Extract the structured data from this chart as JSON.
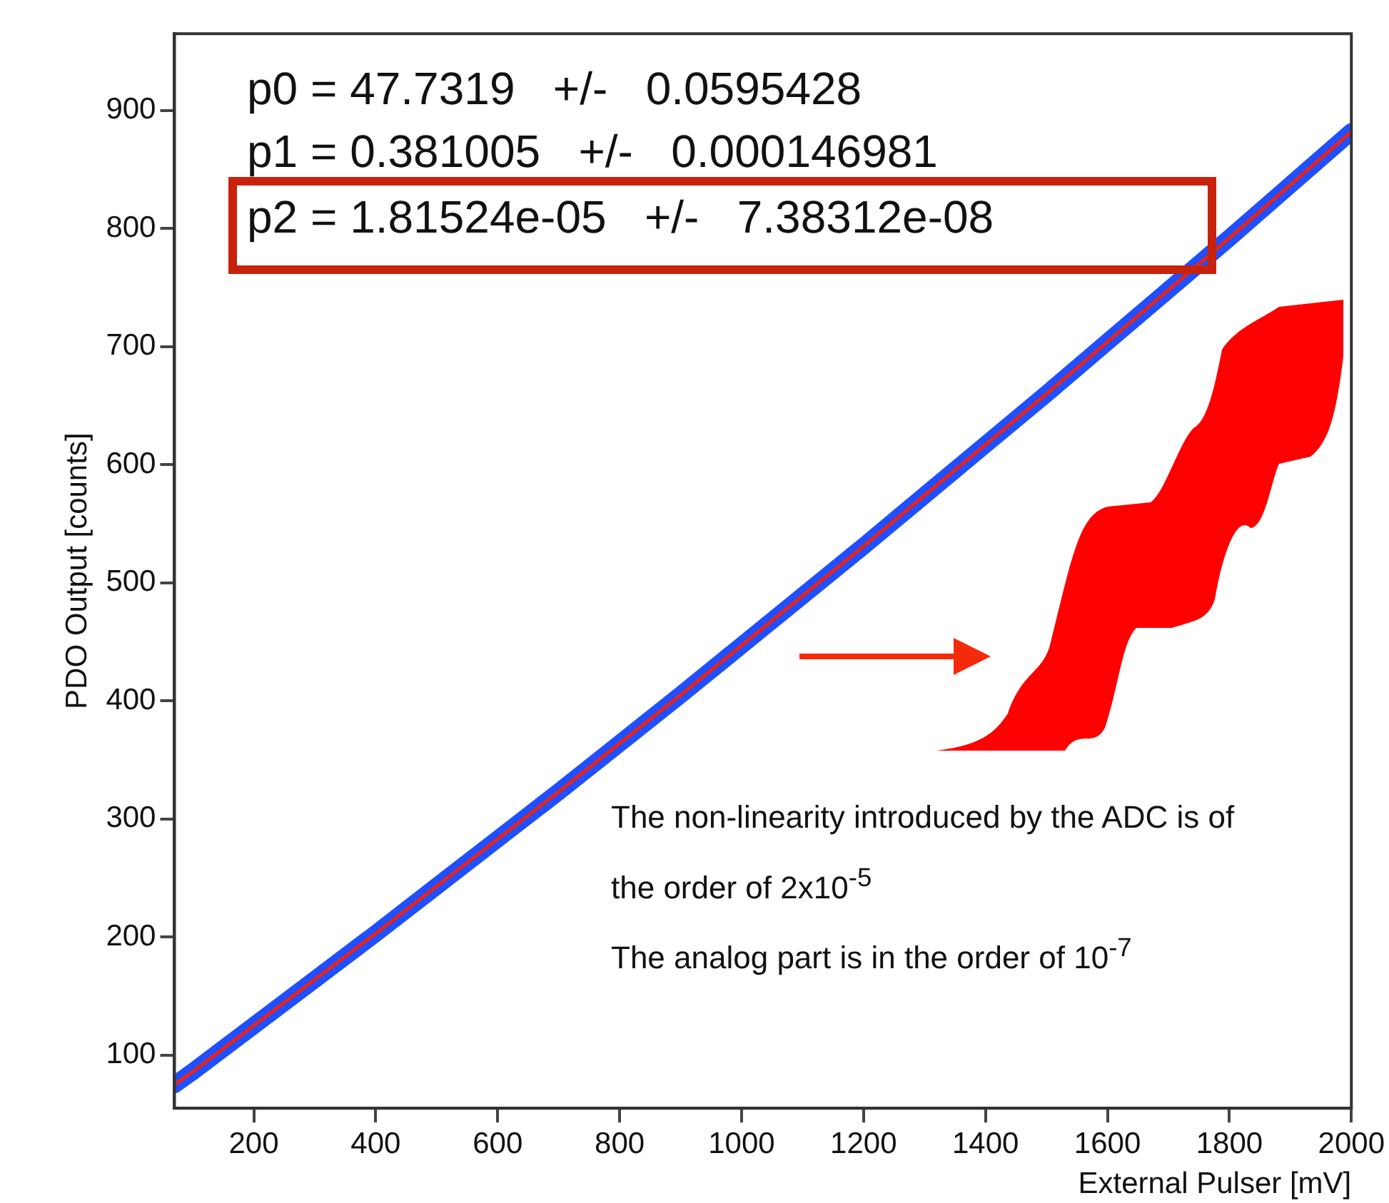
{
  "chart_data": {
    "type": "line",
    "xlabel": "External Pulser [mV]",
    "ylabel": "PDO Output [counts]",
    "x": [
      70,
      100,
      200,
      300,
      400,
      500,
      600,
      700,
      800,
      900,
      1000,
      1100,
      1200,
      1300,
      1400,
      1500,
      1600,
      1700,
      1800,
      1900,
      2000
    ],
    "series": [
      {
        "color": "#1f4fff",
        "values": [
          75,
          86,
          125,
          164,
          203,
          243,
          283,
          323,
          364,
          405,
          447,
          489,
          531,
          574,
          617,
          660,
          704,
          748,
          792,
          837,
          882
        ]
      },
      {
        "color": "#e8231a",
        "values": [
          75,
          86,
          125,
          164,
          203,
          243,
          283,
          323,
          364,
          405,
          447,
          489,
          531,
          574,
          617,
          660,
          704,
          748,
          792,
          837,
          882
        ]
      }
    ],
    "xlim": [
      70,
      2000
    ],
    "xticks": [
      200,
      400,
      600,
      800,
      1000,
      1200,
      1400,
      1600,
      1800,
      2000
    ],
    "ylim": [
      55,
      965
    ],
    "yticks": [
      100,
      200,
      300,
      400,
      500,
      600,
      700,
      800,
      900
    ],
    "marker": "none",
    "grid": false,
    "legend": false,
    "annotations": [
      "p0 = 47.7319   +/-   0.0595428",
      "p1 = 0.381005   +/-   0.000146981",
      "p2 = 1.81524e-05   +/-   7.38312e-08",
      "The non-linearity introduced by the ADC is of the order of 2x10$^{-5}$",
      "The analog part is in the order of 10$^{-7}$"
    ]
  }
}
